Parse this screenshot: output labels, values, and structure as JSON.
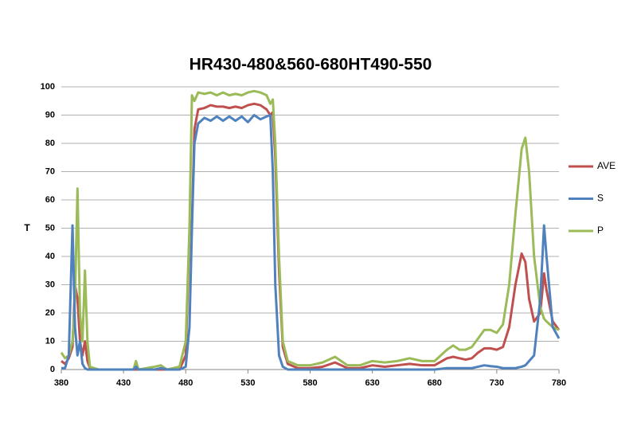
{
  "chart_data": {
    "type": "line",
    "title": "HR430-480&560-680HT490-550",
    "y_label": "T",
    "x": [
      380,
      383,
      386,
      389,
      391,
      393,
      395,
      397,
      399,
      401,
      403,
      410,
      430,
      438,
      440,
      442,
      455,
      460,
      465,
      475,
      480,
      483,
      485,
      487,
      490,
      495,
      500,
      505,
      510,
      515,
      520,
      525,
      530,
      535,
      540,
      545,
      548,
      550,
      552,
      555,
      558,
      562,
      570,
      580,
      590,
      600,
      605,
      610,
      620,
      630,
      640,
      650,
      660,
      670,
      680,
      690,
      695,
      700,
      705,
      710,
      715,
      720,
      725,
      730,
      735,
      740,
      745,
      750,
      753,
      756,
      760,
      765,
      768,
      770,
      775,
      780
    ],
    "series": [
      {
        "name": "AVE",
        "color": "#c0504d",
        "values": [
          3,
          2,
          4,
          8,
          30,
          25,
          10,
          5,
          10,
          3,
          0.5,
          0,
          0,
          0,
          0,
          0,
          0,
          0,
          0,
          0,
          5,
          48,
          52,
          85,
          92,
          92.5,
          93.5,
          93,
          93,
          92.5,
          93,
          92.5,
          93.5,
          94,
          93.5,
          92,
          90,
          91,
          75,
          35,
          8,
          2,
          0.5,
          0.5,
          1,
          2.5,
          1.5,
          0.5,
          0.5,
          1.5,
          1,
          1.5,
          2,
          1.5,
          1.5,
          4,
          4.5,
          4,
          3.5,
          4,
          6,
          7.5,
          7.5,
          7,
          8,
          15,
          30,
          41,
          38,
          25,
          17,
          20,
          34,
          28,
          17,
          14
        ]
      },
      {
        "name": "S",
        "color": "#4f81bd",
        "values": [
          0.5,
          0.5,
          5,
          51,
          15,
          5,
          10,
          2,
          0.5,
          0,
          0,
          0,
          0,
          0,
          1,
          0,
          0,
          0.5,
          0,
          0,
          1,
          15,
          50,
          80,
          87,
          89,
          88,
          89.5,
          88,
          89.5,
          88,
          89.5,
          87.5,
          90,
          88.5,
          89.5,
          90,
          70,
          30,
          5,
          1,
          0,
          0,
          0,
          0,
          0,
          0,
          0,
          0,
          0,
          0,
          0,
          0,
          0,
          0,
          0.5,
          0.5,
          0.5,
          0.5,
          0.5,
          1,
          1.5,
          1.2,
          1,
          0.5,
          0.5,
          0.5,
          1,
          1.5,
          3,
          5,
          25,
          51,
          40,
          15,
          11
        ]
      },
      {
        "name": "P",
        "color": "#9bbb59",
        "values": [
          6,
          4,
          5,
          10,
          25,
          64,
          20,
          10,
          35,
          10,
          1,
          0,
          0,
          0,
          3,
          0,
          1,
          1.5,
          0,
          1,
          10,
          50,
          97,
          95,
          98,
          97.5,
          98,
          97,
          98,
          97,
          97.5,
          97,
          98,
          98.5,
          98,
          97,
          94,
          95.5,
          80,
          40,
          10,
          3,
          1.5,
          1.5,
          2.5,
          4.5,
          3,
          1.5,
          1.5,
          3,
          2.5,
          3,
          4,
          3,
          3,
          7,
          8.5,
          7,
          7,
          8,
          11,
          14,
          14,
          13,
          16,
          30,
          55,
          78,
          82,
          70,
          40,
          22,
          18,
          17,
          15,
          14
        ]
      }
    ],
    "xlim": [
      380,
      780
    ],
    "xticks": [
      380,
      430,
      480,
      530,
      580,
      630,
      680,
      730,
      780
    ],
    "ylim": [
      0,
      100
    ],
    "yticks": [
      0,
      10,
      20,
      30,
      40,
      50,
      60,
      70,
      80,
      90,
      100
    ],
    "grid": true,
    "legend": "right"
  }
}
